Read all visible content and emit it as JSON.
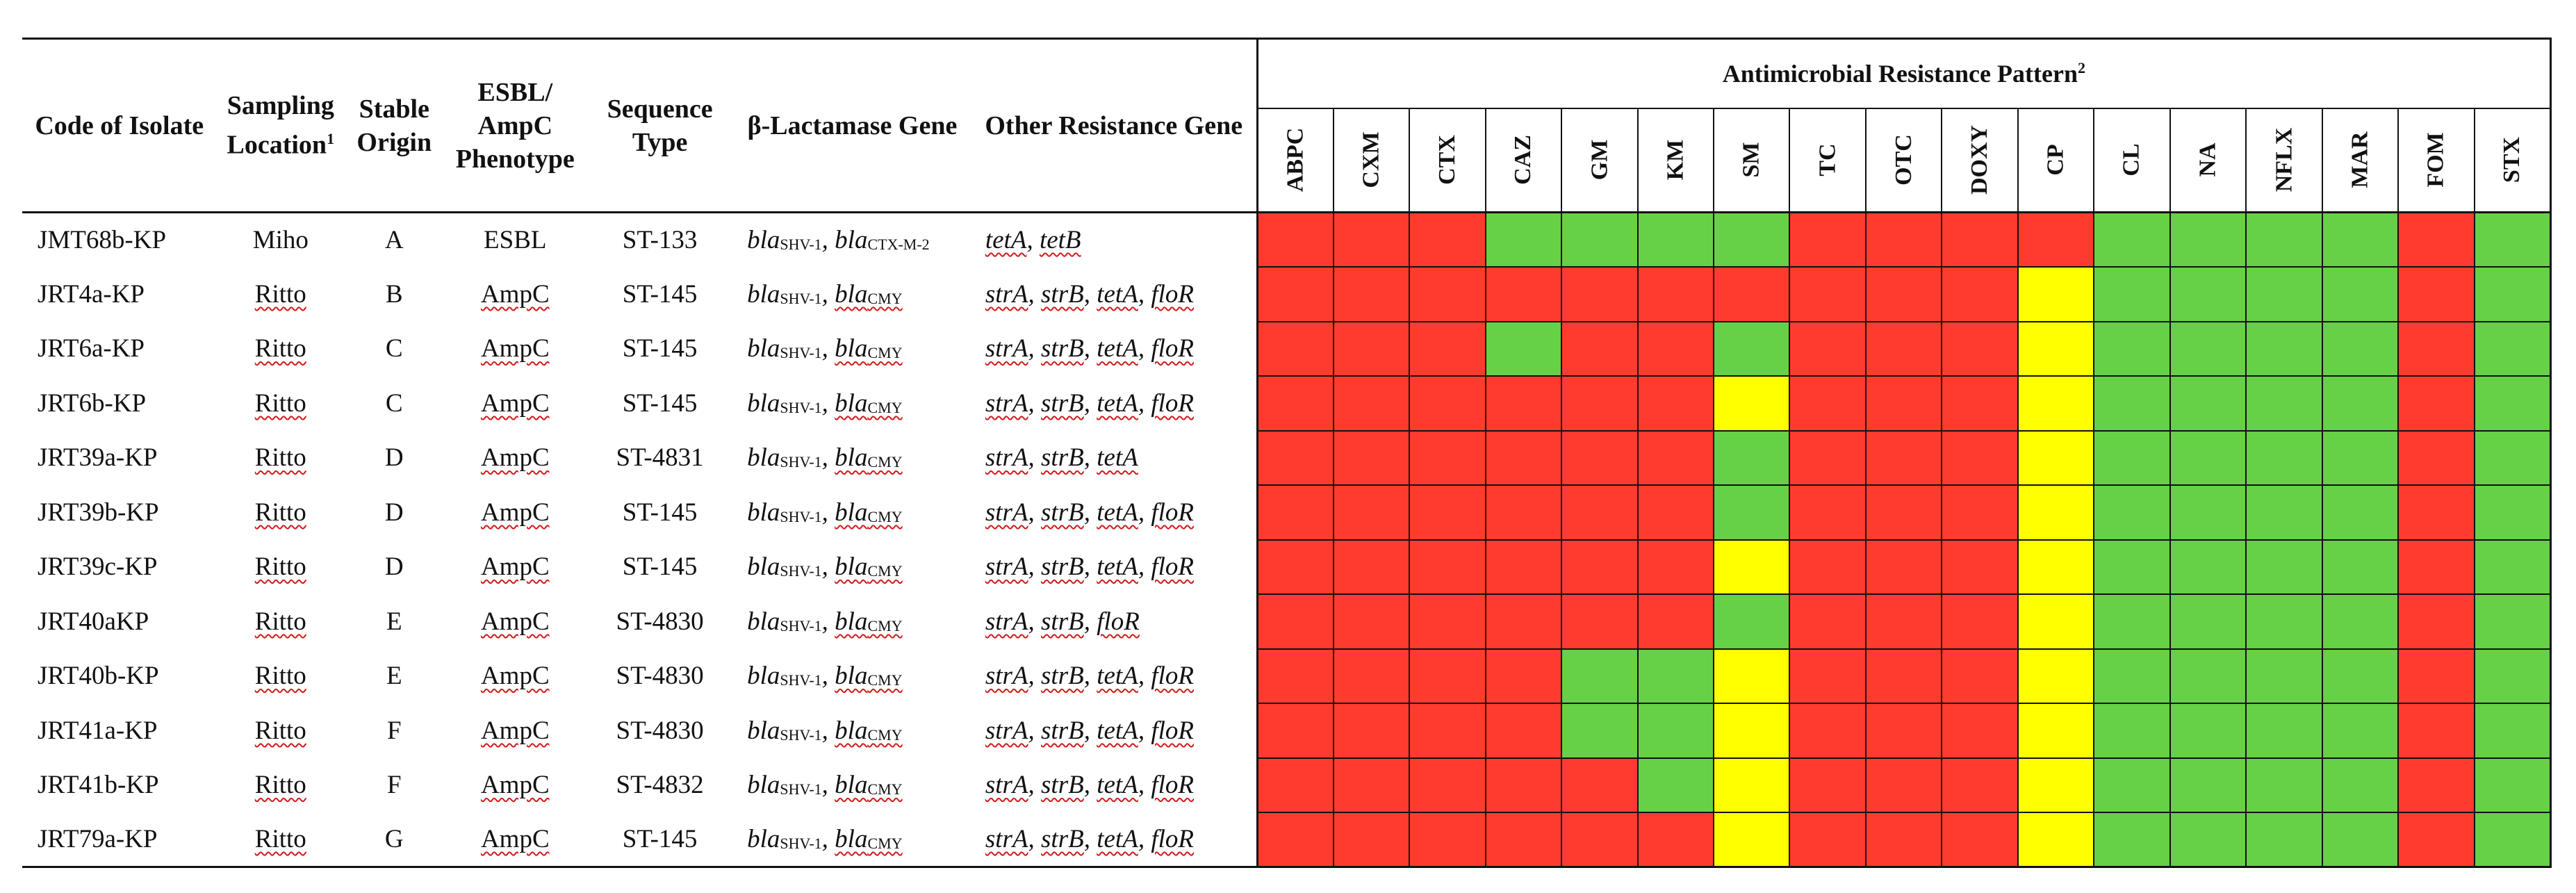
{
  "header": {
    "code": "Code of Isolate",
    "location": "Sampling Location",
    "location_sup": "1",
    "stable": "Stable Origin",
    "phenotype": "ESBL/ AmpC Phenotype",
    "sequence": "Sequence Type",
    "bla": "β-Lactamase Gene",
    "other": "Other Resistance Gene",
    "amr_title": "Antimicrobial Resistance Pattern",
    "amr_sup": "2"
  },
  "drugs": [
    "ABPC",
    "CXM",
    "CTX",
    "CAZ",
    "GM",
    "KM",
    "SM",
    "TC",
    "OTC",
    "DOXY",
    "CP",
    "CL",
    "NA",
    "NFLX",
    "MAR",
    "FOM",
    "STX"
  ],
  "legend_colors": {
    "R": "#ff3b2f",
    "S": "#66d046",
    "I": "#ffff00"
  },
  "rows": [
    {
      "code": "JMT68b-KP",
      "location": "Miho",
      "stable": "A",
      "phenotype": "ESBL",
      "st": "ST-133",
      "bla": [
        [
          "bla",
          "SHV-1"
        ],
        [
          "bla",
          "CTX-M-2"
        ]
      ],
      "other": [
        "tetA",
        "tetB"
      ],
      "pattern": [
        "R",
        "R",
        "R",
        "S",
        "S",
        "S",
        "S",
        "R",
        "R",
        "R",
        "R",
        "S",
        "S",
        "S",
        "S",
        "R",
        "S"
      ]
    },
    {
      "code": "JRT4a-KP",
      "location": "Ritto",
      "stable": "B",
      "phenotype": "AmpC",
      "st": "ST-145",
      "bla": [
        [
          "bla",
          "SHV-1"
        ],
        [
          "bla",
          "CMY"
        ]
      ],
      "other": [
        "strA",
        "strB",
        "tetA",
        "floR"
      ],
      "pattern": [
        "R",
        "R",
        "R",
        "R",
        "R",
        "R",
        "R",
        "R",
        "R",
        "R",
        "I",
        "S",
        "S",
        "S",
        "S",
        "R",
        "S"
      ]
    },
    {
      "code": "JRT6a-KP",
      "location": "Ritto",
      "stable": "C",
      "phenotype": "AmpC",
      "st": "ST-145",
      "bla": [
        [
          "bla",
          "SHV-1"
        ],
        [
          "bla",
          "CMY"
        ]
      ],
      "other": [
        "strA",
        "strB",
        "tetA",
        "floR"
      ],
      "pattern": [
        "R",
        "R",
        "R",
        "S",
        "R",
        "R",
        "S",
        "R",
        "R",
        "R",
        "I",
        "S",
        "S",
        "S",
        "S",
        "R",
        "S"
      ]
    },
    {
      "code": "JRT6b-KP",
      "location": "Ritto",
      "stable": "C",
      "phenotype": "AmpC",
      "st": "ST-145",
      "bla": [
        [
          "bla",
          "SHV-1"
        ],
        [
          "bla",
          "CMY"
        ]
      ],
      "other": [
        "strA",
        "strB",
        "tetA",
        "floR"
      ],
      "pattern": [
        "R",
        "R",
        "R",
        "R",
        "R",
        "R",
        "I",
        "R",
        "R",
        "R",
        "I",
        "S",
        "S",
        "S",
        "S",
        "R",
        "S"
      ]
    },
    {
      "code": "JRT39a-KP",
      "location": "Ritto",
      "stable": "D",
      "phenotype": "AmpC",
      "st": "ST-4831",
      "bla": [
        [
          "bla",
          "SHV-1"
        ],
        [
          "bla",
          "CMY"
        ]
      ],
      "other": [
        "strA",
        "strB",
        "tetA"
      ],
      "pattern": [
        "R",
        "R",
        "R",
        "R",
        "R",
        "R",
        "S",
        "R",
        "R",
        "R",
        "I",
        "S",
        "S",
        "S",
        "S",
        "R",
        "S"
      ]
    },
    {
      "code": "JRT39b-KP",
      "location": "Ritto",
      "stable": "D",
      "phenotype": "AmpC",
      "st": "ST-145",
      "bla": [
        [
          "bla",
          "SHV-1"
        ],
        [
          "bla",
          "CMY"
        ]
      ],
      "other": [
        "strA",
        "strB",
        "tetA",
        "floR"
      ],
      "pattern": [
        "R",
        "R",
        "R",
        "R",
        "R",
        "R",
        "S",
        "R",
        "R",
        "R",
        "I",
        "S",
        "S",
        "S",
        "S",
        "R",
        "S"
      ]
    },
    {
      "code": "JRT39c-KP",
      "location": "Ritto",
      "stable": "D",
      "phenotype": "AmpC",
      "st": "ST-145",
      "bla": [
        [
          "bla",
          "SHV-1"
        ],
        [
          "bla",
          "CMY"
        ]
      ],
      "other": [
        "strA",
        "strB",
        "tetA",
        "floR"
      ],
      "pattern": [
        "R",
        "R",
        "R",
        "R",
        "R",
        "R",
        "I",
        "R",
        "R",
        "R",
        "I",
        "S",
        "S",
        "S",
        "S",
        "R",
        "S"
      ]
    },
    {
      "code": "JRT40aKP",
      "location": "Ritto",
      "stable": "E",
      "phenotype": "AmpC",
      "st": "ST-4830",
      "bla": [
        [
          "bla",
          "SHV-1"
        ],
        [
          "bla",
          "CMY"
        ]
      ],
      "other": [
        "strA",
        "strB",
        "floR"
      ],
      "pattern": [
        "R",
        "R",
        "R",
        "R",
        "R",
        "R",
        "S",
        "R",
        "R",
        "R",
        "I",
        "S",
        "S",
        "S",
        "S",
        "R",
        "S"
      ]
    },
    {
      "code": "JRT40b-KP",
      "location": "Ritto",
      "stable": "E",
      "phenotype": "AmpC",
      "st": "ST-4830",
      "bla": [
        [
          "bla",
          "SHV-1"
        ],
        [
          "bla",
          "CMY"
        ]
      ],
      "other": [
        "strA",
        "strB",
        "tetA",
        "floR"
      ],
      "pattern": [
        "R",
        "R",
        "R",
        "R",
        "S",
        "S",
        "I",
        "R",
        "R",
        "R",
        "I",
        "S",
        "S",
        "S",
        "S",
        "R",
        "S"
      ]
    },
    {
      "code": "JRT41a-KP",
      "location": "Ritto",
      "stable": "F",
      "phenotype": "AmpC",
      "st": "ST-4830",
      "bla": [
        [
          "bla",
          "SHV-1"
        ],
        [
          "bla",
          "CMY"
        ]
      ],
      "other": [
        "strA",
        "strB",
        "tetA",
        "floR"
      ],
      "pattern": [
        "R",
        "R",
        "R",
        "R",
        "S",
        "S",
        "I",
        "R",
        "R",
        "R",
        "I",
        "S",
        "S",
        "S",
        "S",
        "R",
        "S"
      ]
    },
    {
      "code": "JRT41b-KP",
      "location": "Ritto",
      "stable": "F",
      "phenotype": "AmpC",
      "st": "ST-4832",
      "bla": [
        [
          "bla",
          "SHV-1"
        ],
        [
          "bla",
          "CMY"
        ]
      ],
      "other": [
        "strA",
        "strB",
        "tetA",
        "floR"
      ],
      "pattern": [
        "R",
        "R",
        "R",
        "R",
        "R",
        "S",
        "I",
        "R",
        "R",
        "R",
        "I",
        "S",
        "S",
        "S",
        "S",
        "R",
        "S"
      ]
    },
    {
      "code": "JRT79a-KP",
      "location": "Ritto",
      "stable": "G",
      "phenotype": "AmpC",
      "st": "ST-145",
      "bla": [
        [
          "bla",
          "SHV-1"
        ],
        [
          "bla",
          "CMY"
        ]
      ],
      "other": [
        "strA",
        "strB",
        "tetA",
        "floR"
      ],
      "pattern": [
        "R",
        "R",
        "R",
        "R",
        "R",
        "R",
        "I",
        "R",
        "R",
        "R",
        "I",
        "S",
        "S",
        "S",
        "S",
        "R",
        "S"
      ]
    }
  ]
}
